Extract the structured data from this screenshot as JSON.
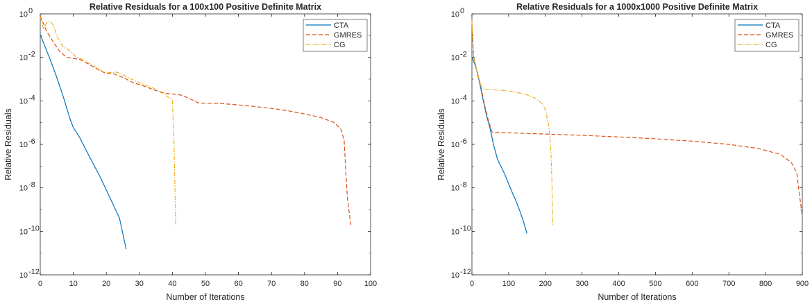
{
  "chart_data": [
    {
      "type": "line",
      "title": "Relative Residuals for a 100x100 Positive Definite Matrix",
      "xlabel": "Number of Iterations",
      "ylabel": "Relative Residuals",
      "xlim": [
        0,
        100
      ],
      "ylim": [
        1e-12,
        1
      ],
      "yscale": "log",
      "grid": false,
      "legend": "top-right",
      "xticks": [
        0,
        10,
        20,
        30,
        40,
        50,
        60,
        70,
        80,
        90,
        100
      ],
      "xtick_labels": [
        "0",
        "10",
        "20",
        "30",
        "40",
        "50",
        "60",
        "70",
        "80",
        "90",
        "100"
      ],
      "yticks": [
        -12,
        -10,
        -8,
        -6,
        -4,
        -2,
        0
      ],
      "ytick_mantissa": "10",
      "ytick_exponents": [
        "-12",
        "-10",
        "-8",
        "-6",
        "-4",
        "-2",
        "0"
      ],
      "series": [
        {
          "name": "CTA",
          "color": "#0072BD",
          "dash": "solid",
          "points": [
            [
              0,
              0.11
            ],
            [
              3,
              0.008
            ],
            [
              5,
              0.0012
            ],
            [
              7,
              0.00015
            ],
            [
              9,
              1.5e-05
            ],
            [
              10,
              6e-06
            ],
            [
              12,
              2e-06
            ],
            [
              14,
              5e-07
            ],
            [
              16,
              1.3e-07
            ],
            [
              18,
              3.5e-08
            ],
            [
              20,
              8e-09
            ],
            [
              22,
              1.8e-09
            ],
            [
              24,
              4e-10
            ],
            [
              26,
              1.5e-11
            ]
          ]
        },
        {
          "name": "GMRES",
          "color": "#D95319",
          "dash": "dashed",
          "points": [
            [
              0,
              0.8
            ],
            [
              2,
              0.15
            ],
            [
              4,
              0.05
            ],
            [
              6,
              0.018
            ],
            [
              8,
              0.01
            ],
            [
              10,
              0.009
            ],
            [
              12,
              0.008
            ],
            [
              15,
              0.0045
            ],
            [
              18,
              0.0025
            ],
            [
              20,
              0.0018
            ],
            [
              22,
              0.0018
            ],
            [
              25,
              0.0012
            ],
            [
              28,
              0.0007
            ],
            [
              31,
              0.0005
            ],
            [
              35,
              0.0003
            ],
            [
              38,
              0.00022
            ],
            [
              41,
              0.0002
            ],
            [
              43,
              0.00018
            ],
            [
              46,
              0.00011
            ],
            [
              48,
              8e-05
            ],
            [
              55,
              7.5e-05
            ],
            [
              60,
              6.5e-05
            ],
            [
              65,
              5.5e-05
            ],
            [
              70,
              4.5e-05
            ],
            [
              75,
              3.5e-05
            ],
            [
              80,
              2.5e-05
            ],
            [
              85,
              1.7e-05
            ],
            [
              89,
              1e-05
            ],
            [
              91,
              5e-06
            ],
            [
              92,
              1.5e-06
            ],
            [
              92.5,
              5e-08
            ],
            [
              93,
              3e-09
            ],
            [
              94,
              2e-10
            ]
          ]
        },
        {
          "name": "CG",
          "color": "#EDB120",
          "dash": "dashdot",
          "points": [
            [
              0,
              0.7
            ],
            [
              1,
              0.2
            ],
            [
              2,
              0.4
            ],
            [
              3,
              0.45
            ],
            [
              4,
              0.3
            ],
            [
              5,
              0.1
            ],
            [
              6,
              0.05
            ],
            [
              7,
              0.03
            ],
            [
              9,
              0.02
            ],
            [
              11,
              0.01
            ],
            [
              13,
              0.008
            ],
            [
              15,
              0.005
            ],
            [
              17,
              0.0035
            ],
            [
              19,
              0.0022
            ],
            [
              21,
              0.002
            ],
            [
              23,
              0.0021
            ],
            [
              25,
              0.0016
            ],
            [
              27,
              0.0011
            ],
            [
              29,
              0.0008
            ],
            [
              31,
              0.0006
            ],
            [
              34,
              0.0004
            ],
            [
              37,
              0.00022
            ],
            [
              40,
              0.00011
            ],
            [
              40.5,
              1e-06
            ],
            [
              41,
              1.8e-10
            ]
          ]
        }
      ]
    },
    {
      "type": "line",
      "title": "Relative Residuals for a 1000x1000 Positive Definite Matrix",
      "xlabel": "Number of Iterations",
      "ylabel": "Relative Residuals",
      "xlim": [
        0,
        900
      ],
      "ylim": [
        1e-12,
        1
      ],
      "yscale": "log",
      "grid": false,
      "legend": "top-right",
      "xticks": [
        0,
        100,
        200,
        300,
        400,
        500,
        600,
        700,
        800,
        900
      ],
      "xtick_labels": [
        "0",
        "100",
        "200",
        "300",
        "400",
        "500",
        "600",
        "700",
        "800",
        "900"
      ],
      "yticks": [
        -12,
        -10,
        -8,
        -6,
        -4,
        -2,
        0
      ],
      "ytick_mantissa": "10",
      "ytick_exponents": [
        "-12",
        "-10",
        "-8",
        "-6",
        "-4",
        "-2",
        "0"
      ],
      "series": [
        {
          "name": "CTA",
          "color": "#0072BD",
          "dash": "solid",
          "points": [
            [
              0,
              0.01
            ],
            [
              10,
              0.004
            ],
            [
              20,
              0.0008
            ],
            [
              30,
              0.00012
            ],
            [
              40,
              2e-05
            ],
            [
              50,
              5e-06
            ],
            [
              60,
              8e-07
            ],
            [
              70,
              2e-07
            ],
            [
              80,
              9e-08
            ],
            [
              90,
              4e-08
            ],
            [
              100,
              1.5e-08
            ],
            [
              110,
              6e-09
            ],
            [
              120,
              2.5e-09
            ],
            [
              130,
              9e-10
            ],
            [
              140,
              3e-10
            ],
            [
              150,
              8e-11
            ]
          ]
        },
        {
          "name": "GMRES",
          "color": "#D95319",
          "dash": "dashed",
          "points": [
            [
              0,
              0.3
            ],
            [
              5,
              0.01
            ],
            [
              15,
              0.002
            ],
            [
              25,
              0.0004
            ],
            [
              35,
              6e-05
            ],
            [
              45,
              1.2e-05
            ],
            [
              55,
              3.6e-06
            ],
            [
              100,
              3.4e-06
            ],
            [
              200,
              3e-06
            ],
            [
              300,
              2.6e-06
            ],
            [
              400,
              2.2e-06
            ],
            [
              500,
              1.8e-06
            ],
            [
              600,
              1.4e-06
            ],
            [
              700,
              1e-06
            ],
            [
              780,
              6.5e-07
            ],
            [
              840,
              3.5e-07
            ],
            [
              870,
              1.5e-07
            ],
            [
              885,
              5e-08
            ],
            [
              892,
              5e-09
            ],
            [
              900,
              5e-10
            ]
          ]
        },
        {
          "name": "CG",
          "color": "#EDB120",
          "dash": "dashdot",
          "points": [
            [
              0,
              0.5
            ],
            [
              5,
              0.01
            ],
            [
              15,
              0.002
            ],
            [
              25,
              0.0005
            ],
            [
              35,
              0.00035
            ],
            [
              60,
              0.00032
            ],
            [
              90,
              0.0003
            ],
            [
              120,
              0.00025
            ],
            [
              150,
              0.00019
            ],
            [
              170,
              0.00014
            ],
            [
              190,
              8e-05
            ],
            [
              200,
              4e-05
            ],
            [
              210,
              6e-06
            ],
            [
              215,
              5e-07
            ],
            [
              218,
              2e-08
            ],
            [
              220,
              1.8e-10
            ]
          ]
        }
      ]
    }
  ]
}
